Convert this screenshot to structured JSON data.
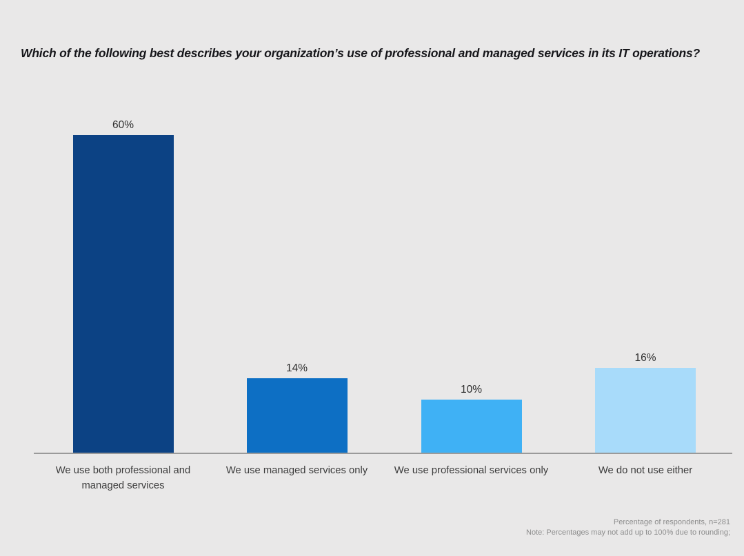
{
  "title": "Which of the following best describes your organization’s use of professional and managed services in its IT operations?",
  "chart_data": {
    "type": "bar",
    "title": "Which of the following best describes your organization’s use of professional and managed services in its IT operations?",
    "categories": [
      "We use both professional and managed services",
      "We use managed services only",
      "We use professional services only",
      "We do not use either"
    ],
    "values": [
      60,
      14,
      10,
      16
    ],
    "value_labels": [
      "60%",
      "14%",
      "10%",
      "16%"
    ],
    "bar_colors": [
      "#0C4284",
      "#0D6FC4",
      "#3FB1F5",
      "#A8DBFA"
    ],
    "xlabel": "",
    "ylabel": "",
    "ylim": [
      0,
      65
    ],
    "grid": false,
    "legend": false,
    "value_labels_position": "above-bars"
  },
  "footer": {
    "line1": "Percentage of respondents, n=281",
    "line2": "Note: Percentages may not add up to 100% due to rounding;"
  },
  "colors": {
    "background": "#E9E8E8",
    "axis_line": "#9A9A9A",
    "title_text": "#16161A",
    "label_text": "#3C3C3C",
    "footer_text": "#8C8C8C"
  }
}
